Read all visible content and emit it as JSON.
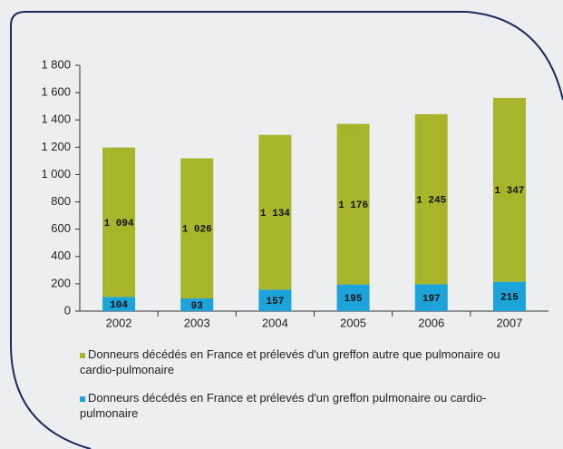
{
  "chart_data": {
    "type": "stacked_bar",
    "categories": [
      "2002",
      "2003",
      "2004",
      "2005",
      "2006",
      "2007"
    ],
    "series": [
      {
        "name": "Donneurs décédés en France et prélevés d'un greffon autre que pulmonaire ou cardio-pulmonaire",
        "color": "#a8b52b",
        "values": [
          1094,
          1026,
          1134,
          1176,
          1245,
          1347
        ],
        "value_labels": [
          "1 094",
          "1 026",
          "1 134",
          "1 176",
          "1 245",
          "1 347"
        ]
      },
      {
        "name": "Donneurs décédés en France et prélevés d'un greffon pulmonaire ou cardio-pulmonaire",
        "color": "#1ba3da",
        "values": [
          104,
          93,
          157,
          195,
          197,
          215
        ]
      }
    ],
    "ylim": [
      0,
      1800
    ],
    "yticks": [
      0,
      200,
      400,
      600,
      800,
      {
        "value": 1000,
        "label": "1 000"
      },
      {
        "value": 1200,
        "label": "1 200"
      },
      {
        "value": 1400,
        "label": "1 400"
      },
      {
        "value": 1600,
        "label": "1 600"
      },
      {
        "value": 1800,
        "label": "1 800"
      }
    ]
  }
}
